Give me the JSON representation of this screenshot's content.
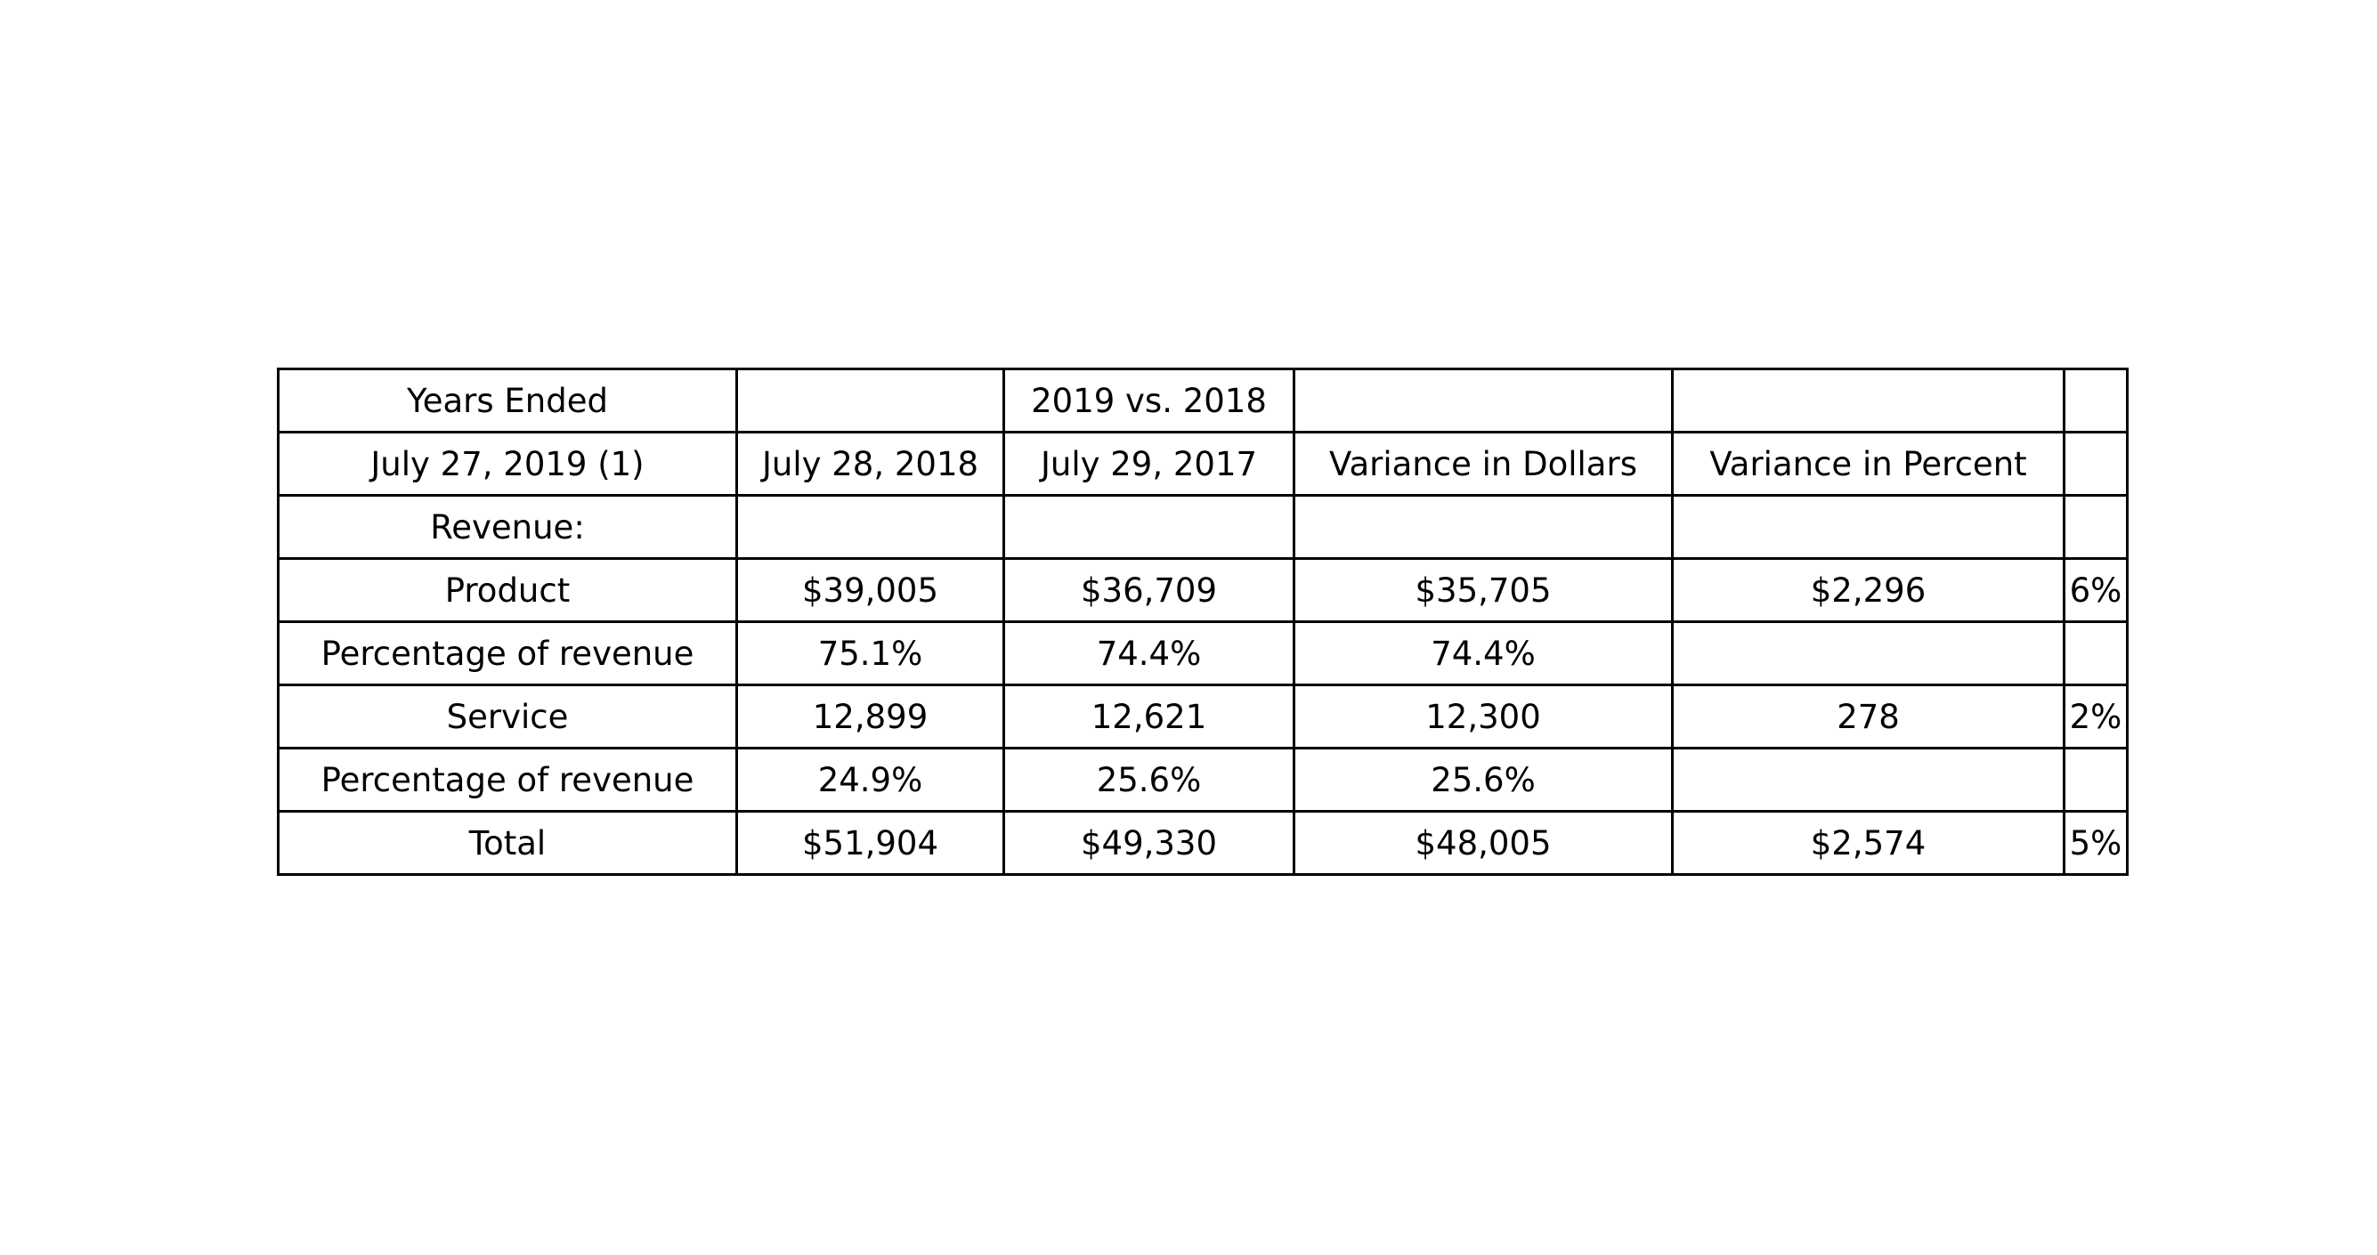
{
  "chart_data": {
    "type": "table",
    "columns": [
      "col-1",
      "col-2",
      "col-3",
      "col-4",
      "col-5",
      "col-6"
    ],
    "rows": [
      [
        "Years Ended",
        "",
        "2019 vs. 2018",
        "",
        "",
        ""
      ],
      [
        "July 27, 2019 (1)",
        "July 28, 2018",
        "July 29, 2017",
        "Variance in Dollars",
        "Variance in Percent",
        ""
      ],
      [
        "Revenue:",
        "",
        "",
        "",
        "",
        ""
      ],
      [
        "Product",
        "$39,005",
        "$36,709",
        "$35,705",
        "$2,296",
        "6%"
      ],
      [
        "Percentage of revenue",
        "75.1%",
        "74.4%",
        "74.4%",
        "",
        ""
      ],
      [
        "Service",
        "12,899",
        "12,621",
        "12,300",
        "278",
        "2%"
      ],
      [
        "Percentage of revenue",
        "24.9%",
        "25.6%",
        "25.6%",
        "",
        ""
      ],
      [
        "Total",
        "$51,904",
        "$49,330",
        "$48,005",
        "$2,574",
        "5%"
      ]
    ]
  }
}
